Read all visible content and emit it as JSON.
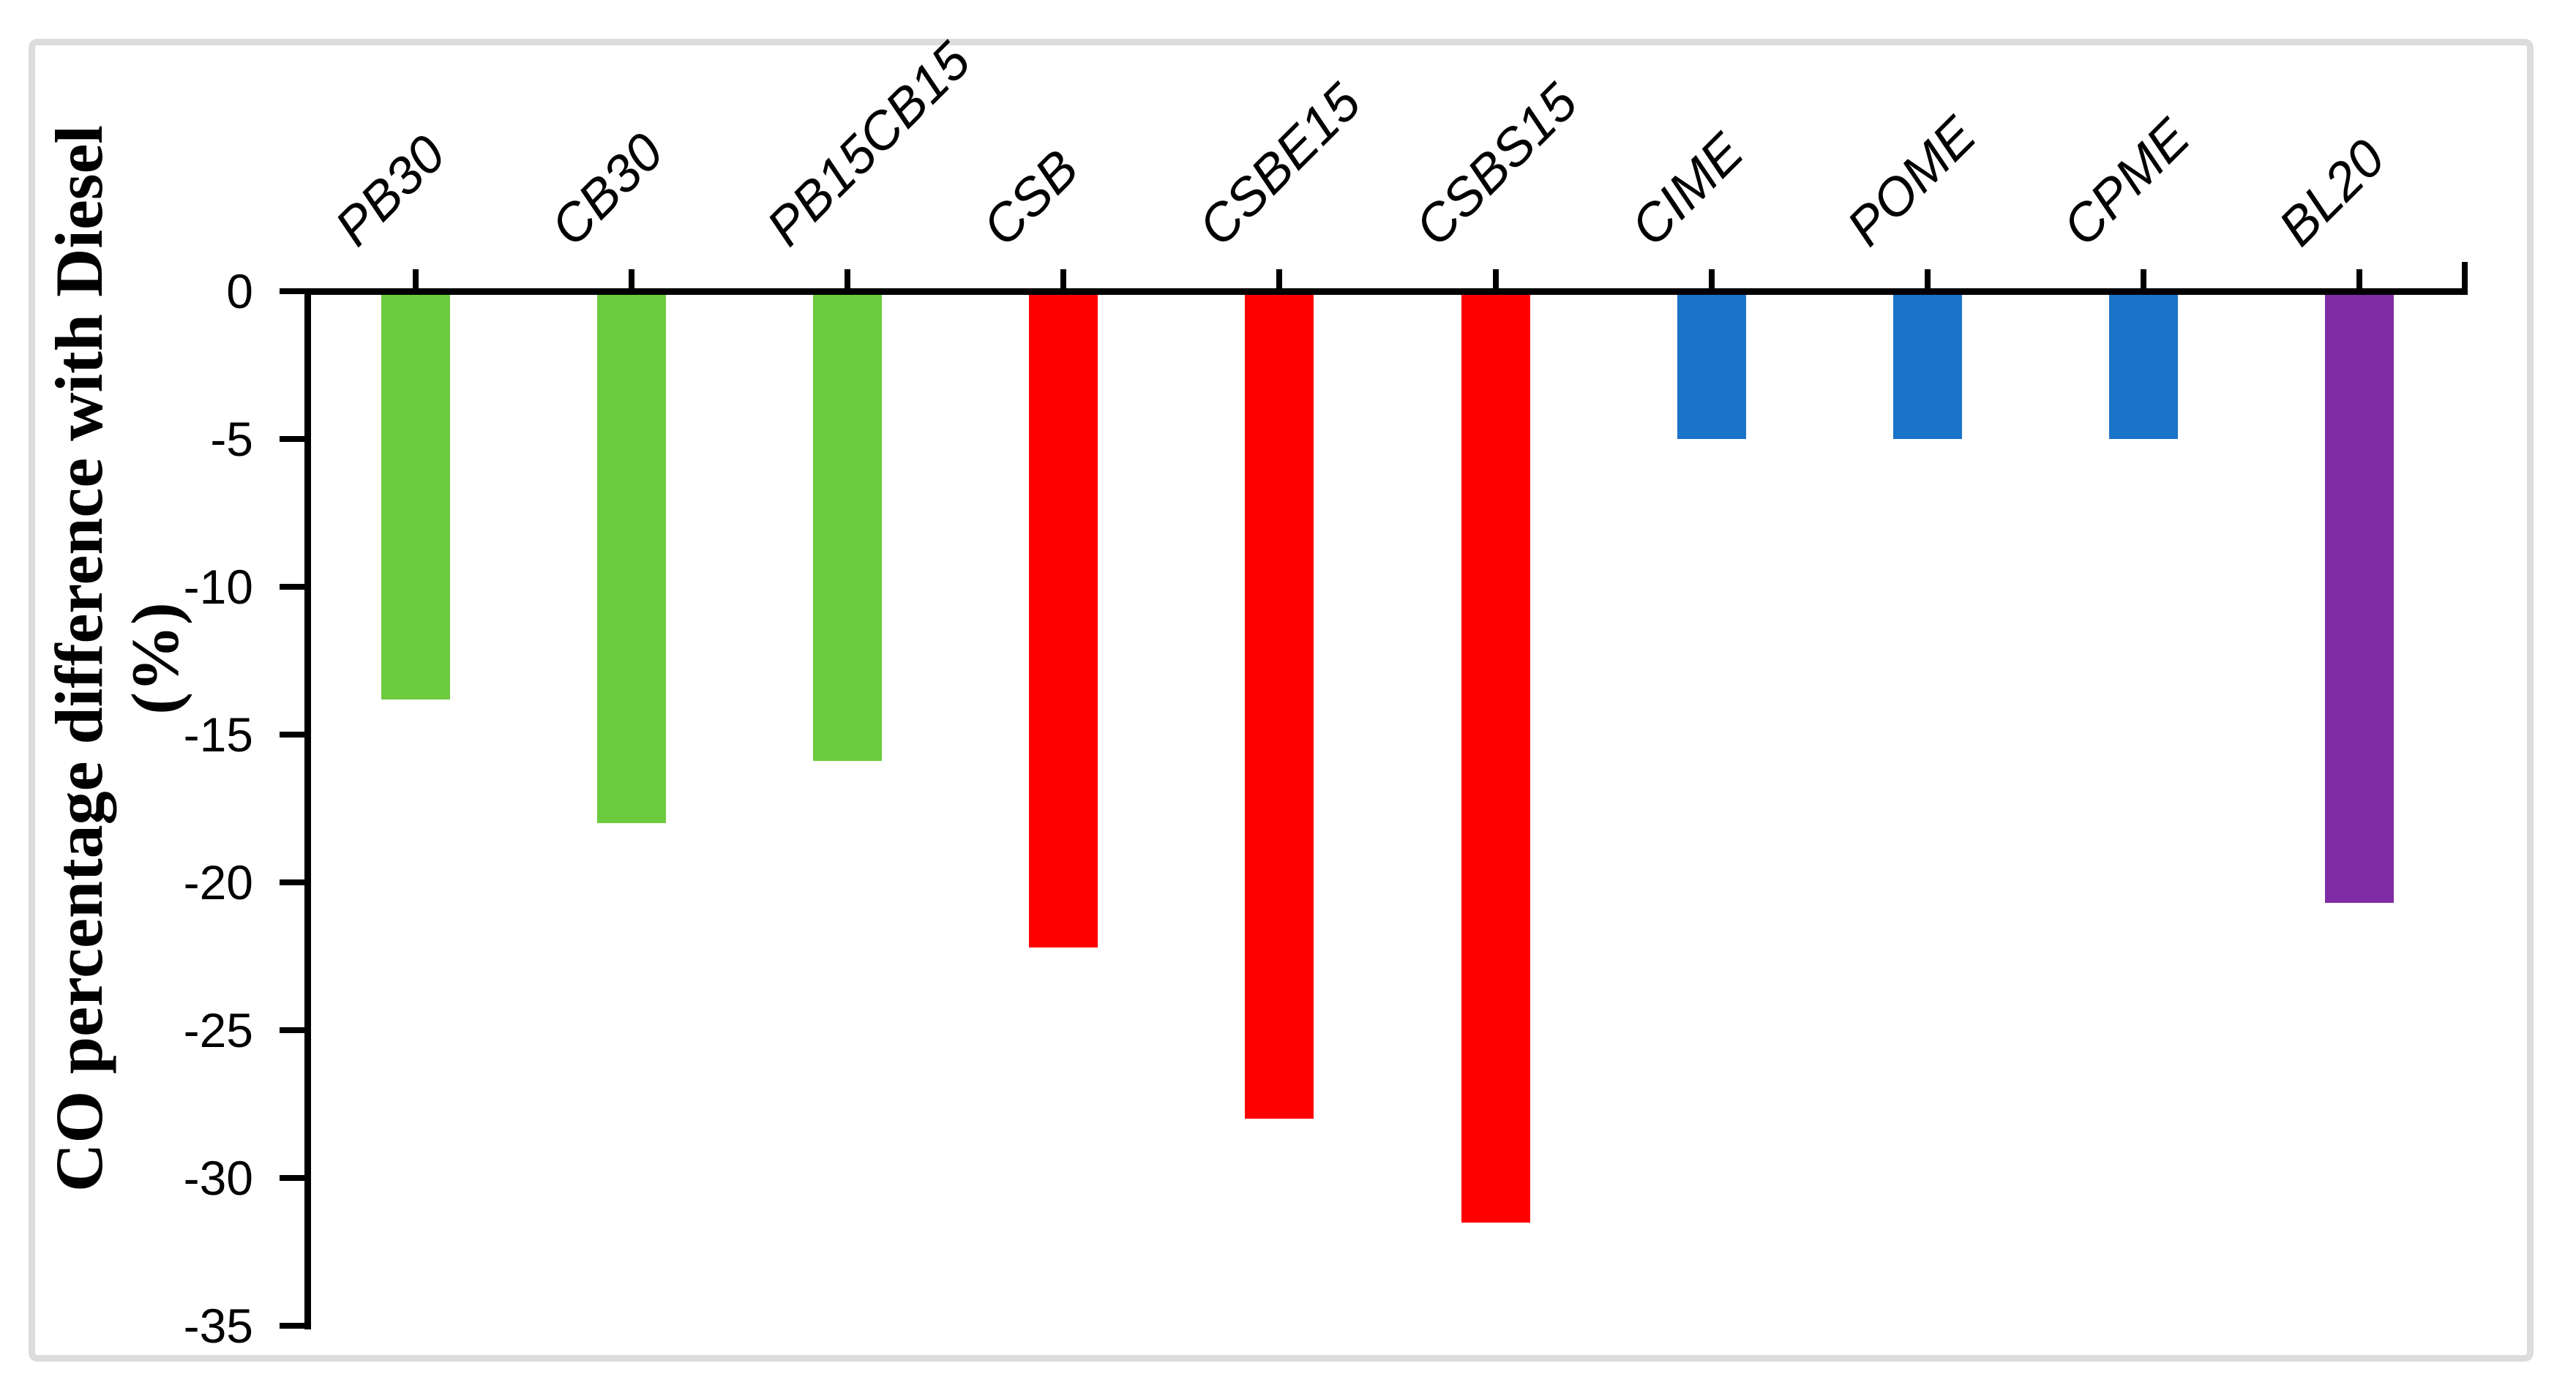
{
  "figure": {
    "background": "#FFFFFF",
    "frame_border_color": "#DCDCDC",
    "axis_color": "#000000",
    "text_color": "#000000"
  },
  "chart_data": {
    "type": "bar",
    "title": "",
    "xlabel": "",
    "ylabel": "CO percentage difference with Diesel",
    "ylabel_unit": "(%)",
    "ylim": [
      0,
      -35
    ],
    "ytick_step": 5,
    "ytick_labels": [
      "0",
      "-5",
      "-10",
      "-15",
      "-20",
      "-25",
      "-30",
      "-35"
    ],
    "ytick_values": [
      0,
      -5,
      -10,
      -15,
      -20,
      -25,
      -30,
      -35
    ],
    "grid": false,
    "legend_position": "none",
    "bar_orientation": "vertical-negative",
    "categories": [
      "PB30",
      "CB30",
      "PB15CB15",
      "CSB",
      "CSBE15",
      "CSBS15",
      "CIME",
      "POME",
      "CPME",
      "BL20"
    ],
    "values": [
      -13.8,
      -18.0,
      -15.9,
      -22.2,
      -28.0,
      -31.5,
      -5.0,
      -5.0,
      -5.0,
      -20.7
    ],
    "bar_colors": [
      "#6CCB3E",
      "#6CCB3E",
      "#6CCB3E",
      "#FF0000",
      "#FF0000",
      "#FF0000",
      "#1B74C8",
      "#1B74C8",
      "#1B74C8",
      "#7F2CA4"
    ],
    "color_legend_semantics": {
      "#6CCB3E": "green-group",
      "#FF0000": "red-group",
      "#1B74C8": "blue-group",
      "#7F2CA4": "purple-group"
    }
  }
}
